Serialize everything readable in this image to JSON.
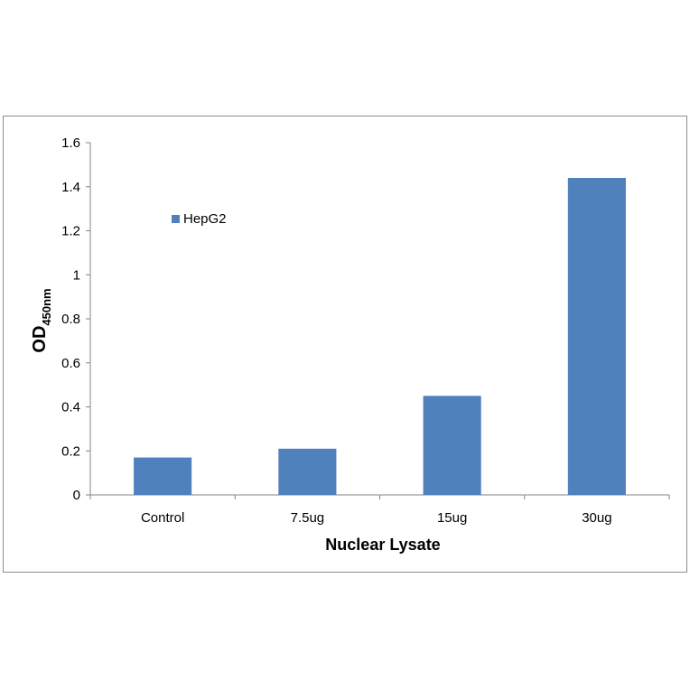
{
  "chart_data": {
    "type": "bar",
    "title": "",
    "categories": [
      "Control",
      "7.5ug",
      "15ug",
      "30ug"
    ],
    "series": [
      {
        "name": "HepG2",
        "values": [
          0.17,
          0.21,
          0.45,
          1.44
        ],
        "color": "#4f81bd"
      }
    ],
    "xlabel": "Nuclear Lysate",
    "ylabel": {
      "main": "OD",
      "subscript": "450nm"
    },
    "ylim": [
      0,
      1.6
    ],
    "yticks": [
      0,
      0.2,
      0.4,
      0.6,
      0.8,
      1,
      1.2,
      1.4,
      1.6
    ],
    "ytick_labels": [
      "0",
      "0.2",
      "0.4",
      "0.6",
      "0.8",
      "1",
      "1.2",
      "1.4",
      "1.6"
    ],
    "grid": false,
    "legend_position": "top-left"
  }
}
